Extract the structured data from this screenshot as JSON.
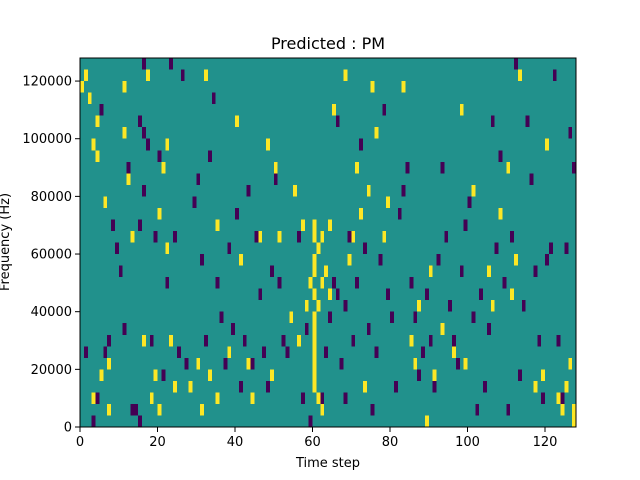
{
  "chart_data": {
    "type": "heatmap",
    "title": "Predicted : PM",
    "xlabel": "Time step",
    "ylabel": "Frequency (Hz)",
    "xlim": [
      0,
      128
    ],
    "ylim": [
      0,
      128000
    ],
    "x_ticks": [
      0,
      20,
      40,
      60,
      80,
      100,
      120
    ],
    "x_tick_labels": [
      "0",
      "20",
      "40",
      "60",
      "80",
      "100",
      "120"
    ],
    "y_ticks": [
      0,
      20000,
      40000,
      60000,
      80000,
      100000,
      120000
    ],
    "y_tick_labels": [
      "0",
      "20000",
      "40000",
      "60000",
      "80000",
      "100000",
      "120000"
    ],
    "colormap": {
      "background": "#21918c",
      "high": "#fde725",
      "low": "#440154"
    },
    "cell_height_hz": 4000,
    "high_cells": [
      [
        0,
        116000
      ],
      [
        1,
        120000
      ],
      [
        2,
        112000
      ],
      [
        3,
        96000
      ],
      [
        3,
        8000
      ],
      [
        4,
        104000
      ],
      [
        4,
        92000
      ],
      [
        5,
        108000
      ],
      [
        5,
        16000
      ],
      [
        6,
        76000
      ],
      [
        7,
        4000
      ],
      [
        7,
        20000
      ],
      [
        11,
        116000
      ],
      [
        11,
        100000
      ],
      [
        12,
        84000
      ],
      [
        13,
        64000
      ],
      [
        16,
        28000
      ],
      [
        17,
        120000
      ],
      [
        18,
        8000
      ],
      [
        19,
        16000
      ],
      [
        20,
        4000
      ],
      [
        20,
        72000
      ],
      [
        21,
        88000
      ],
      [
        22,
        96000
      ],
      [
        22,
        60000
      ],
      [
        23,
        28000
      ],
      [
        24,
        12000
      ],
      [
        25,
        24000
      ],
      [
        28,
        12000
      ],
      [
        30,
        20000
      ],
      [
        31,
        4000
      ],
      [
        32,
        120000
      ],
      [
        33,
        16000
      ],
      [
        35,
        68000
      ],
      [
        35,
        8000
      ],
      [
        38,
        24000
      ],
      [
        40,
        104000
      ],
      [
        41,
        56000
      ],
      [
        43,
        20000
      ],
      [
        44,
        8000
      ],
      [
        46,
        64000
      ],
      [
        48,
        96000
      ],
      [
        49,
        16000
      ],
      [
        50,
        88000
      ],
      [
        51,
        64000
      ],
      [
        53,
        24000
      ],
      [
        54,
        36000
      ],
      [
        55,
        80000
      ],
      [
        56,
        28000
      ],
      [
        57,
        68000
      ],
      [
        58,
        40000
      ],
      [
        59,
        48000
      ],
      [
        60,
        16000
      ],
      [
        60,
        68000
      ],
      [
        60,
        64000
      ],
      [
        60,
        56000
      ],
      [
        60,
        52000
      ],
      [
        60,
        44000
      ],
      [
        60,
        36000
      ],
      [
        60,
        32000
      ],
      [
        60,
        28000
      ],
      [
        60,
        24000
      ],
      [
        60,
        20000
      ],
      [
        60,
        12000
      ],
      [
        61,
        8000
      ],
      [
        61,
        60000
      ],
      [
        61,
        40000
      ],
      [
        62,
        64000
      ],
      [
        62,
        48000
      ],
      [
        62,
        4000
      ],
      [
        63,
        52000
      ],
      [
        64,
        44000
      ],
      [
        64,
        68000
      ],
      [
        65,
        108000
      ],
      [
        68,
        120000
      ],
      [
        69,
        56000
      ],
      [
        70,
        64000
      ],
      [
        71,
        88000
      ],
      [
        72,
        72000
      ],
      [
        73,
        12000
      ],
      [
        74,
        80000
      ],
      [
        75,
        116000
      ],
      [
        76,
        100000
      ],
      [
        78,
        64000
      ],
      [
        79,
        76000
      ],
      [
        83,
        116000
      ],
      [
        84,
        88000
      ],
      [
        85,
        28000
      ],
      [
        86,
        20000
      ],
      [
        87,
        40000
      ],
      [
        89,
        0
      ],
      [
        90,
        52000
      ],
      [
        91,
        16000
      ],
      [
        93,
        32000
      ],
      [
        96,
        24000
      ],
      [
        98,
        108000
      ],
      [
        99,
        20000
      ],
      [
        101,
        80000
      ],
      [
        104,
        12000
      ],
      [
        105,
        52000
      ],
      [
        106,
        40000
      ],
      [
        108,
        72000
      ],
      [
        110,
        88000
      ],
      [
        111,
        44000
      ],
      [
        112,
        56000
      ],
      [
        113,
        120000
      ],
      [
        117,
        12000
      ],
      [
        119,
        16000
      ],
      [
        120,
        96000
      ],
      [
        123,
        8000
      ],
      [
        124,
        4000
      ],
      [
        125,
        12000
      ],
      [
        126,
        20000
      ],
      [
        127,
        0
      ],
      [
        127,
        4000
      ]
    ],
    "low_cells": [
      [
        1,
        24000
      ],
      [
        3,
        0
      ],
      [
        4,
        8000
      ],
      [
        5,
        108000
      ],
      [
        6,
        24000
      ],
      [
        7,
        28000
      ],
      [
        8,
        68000
      ],
      [
        9,
        60000
      ],
      [
        10,
        52000
      ],
      [
        11,
        32000
      ],
      [
        12,
        88000
      ],
      [
        13,
        4000
      ],
      [
        14,
        4000
      ],
      [
        15,
        68000
      ],
      [
        15,
        104000
      ],
      [
        15,
        0
      ],
      [
        16,
        124000
      ],
      [
        16,
        100000
      ],
      [
        16,
        80000
      ],
      [
        17,
        96000
      ],
      [
        18,
        28000
      ],
      [
        19,
        64000
      ],
      [
        20,
        92000
      ],
      [
        21,
        16000
      ],
      [
        22,
        48000
      ],
      [
        23,
        124000
      ],
      [
        24,
        64000
      ],
      [
        25,
        24000
      ],
      [
        26,
        120000
      ],
      [
        27,
        20000
      ],
      [
        29,
        76000
      ],
      [
        30,
        84000
      ],
      [
        31,
        56000
      ],
      [
        32,
        28000
      ],
      [
        33,
        92000
      ],
      [
        34,
        112000
      ],
      [
        35,
        48000
      ],
      [
        36,
        36000
      ],
      [
        37,
        20000
      ],
      [
        38,
        60000
      ],
      [
        39,
        32000
      ],
      [
        40,
        72000
      ],
      [
        41,
        12000
      ],
      [
        42,
        28000
      ],
      [
        43,
        80000
      ],
      [
        44,
        20000
      ],
      [
        45,
        64000
      ],
      [
        46,
        44000
      ],
      [
        47,
        24000
      ],
      [
        48,
        12000
      ],
      [
        49,
        52000
      ],
      [
        50,
        84000
      ],
      [
        51,
        48000
      ],
      [
        52,
        28000
      ],
      [
        53,
        24000
      ],
      [
        56,
        64000
      ],
      [
        57,
        8000
      ],
      [
        58,
        32000
      ],
      [
        59,
        0
      ],
      [
        62,
        8000
      ],
      [
        63,
        24000
      ],
      [
        64,
        36000
      ],
      [
        65,
        48000
      ],
      [
        66,
        44000
      ],
      [
        66,
        104000
      ],
      [
        67,
        20000
      ],
      [
        68,
        8000
      ],
      [
        68,
        40000
      ],
      [
        69,
        64000
      ],
      [
        70,
        28000
      ],
      [
        71,
        48000
      ],
      [
        72,
        96000
      ],
      [
        73,
        60000
      ],
      [
        74,
        32000
      ],
      [
        75,
        4000
      ],
      [
        76,
        24000
      ],
      [
        77,
        56000
      ],
      [
        78,
        108000
      ],
      [
        79,
        44000
      ],
      [
        80,
        36000
      ],
      [
        81,
        12000
      ],
      [
        82,
        72000
      ],
      [
        83,
        80000
      ],
      [
        84,
        88000
      ],
      [
        85,
        48000
      ],
      [
        86,
        36000
      ],
      [
        87,
        16000
      ],
      [
        88,
        24000
      ],
      [
        89,
        44000
      ],
      [
        90,
        28000
      ],
      [
        91,
        12000
      ],
      [
        92,
        56000
      ],
      [
        93,
        88000
      ],
      [
        94,
        64000
      ],
      [
        95,
        40000
      ],
      [
        96,
        28000
      ],
      [
        97,
        20000
      ],
      [
        98,
        52000
      ],
      [
        99,
        68000
      ],
      [
        100,
        76000
      ],
      [
        101,
        36000
      ],
      [
        102,
        4000
      ],
      [
        103,
        44000
      ],
      [
        104,
        12000
      ],
      [
        105,
        32000
      ],
      [
        106,
        104000
      ],
      [
        107,
        60000
      ],
      [
        108,
        92000
      ],
      [
        109,
        48000
      ],
      [
        110,
        4000
      ],
      [
        111,
        64000
      ],
      [
        112,
        124000
      ],
      [
        113,
        16000
      ],
      [
        114,
        40000
      ],
      [
        115,
        104000
      ],
      [
        116,
        84000
      ],
      [
        117,
        52000
      ],
      [
        118,
        28000
      ],
      [
        119,
        8000
      ],
      [
        120,
        56000
      ],
      [
        121,
        60000
      ],
      [
        122,
        120000
      ],
      [
        123,
        28000
      ],
      [
        124,
        8000
      ],
      [
        125,
        60000
      ],
      [
        126,
        100000
      ],
      [
        127,
        88000
      ]
    ],
    "grid": false,
    "legend": "none"
  }
}
